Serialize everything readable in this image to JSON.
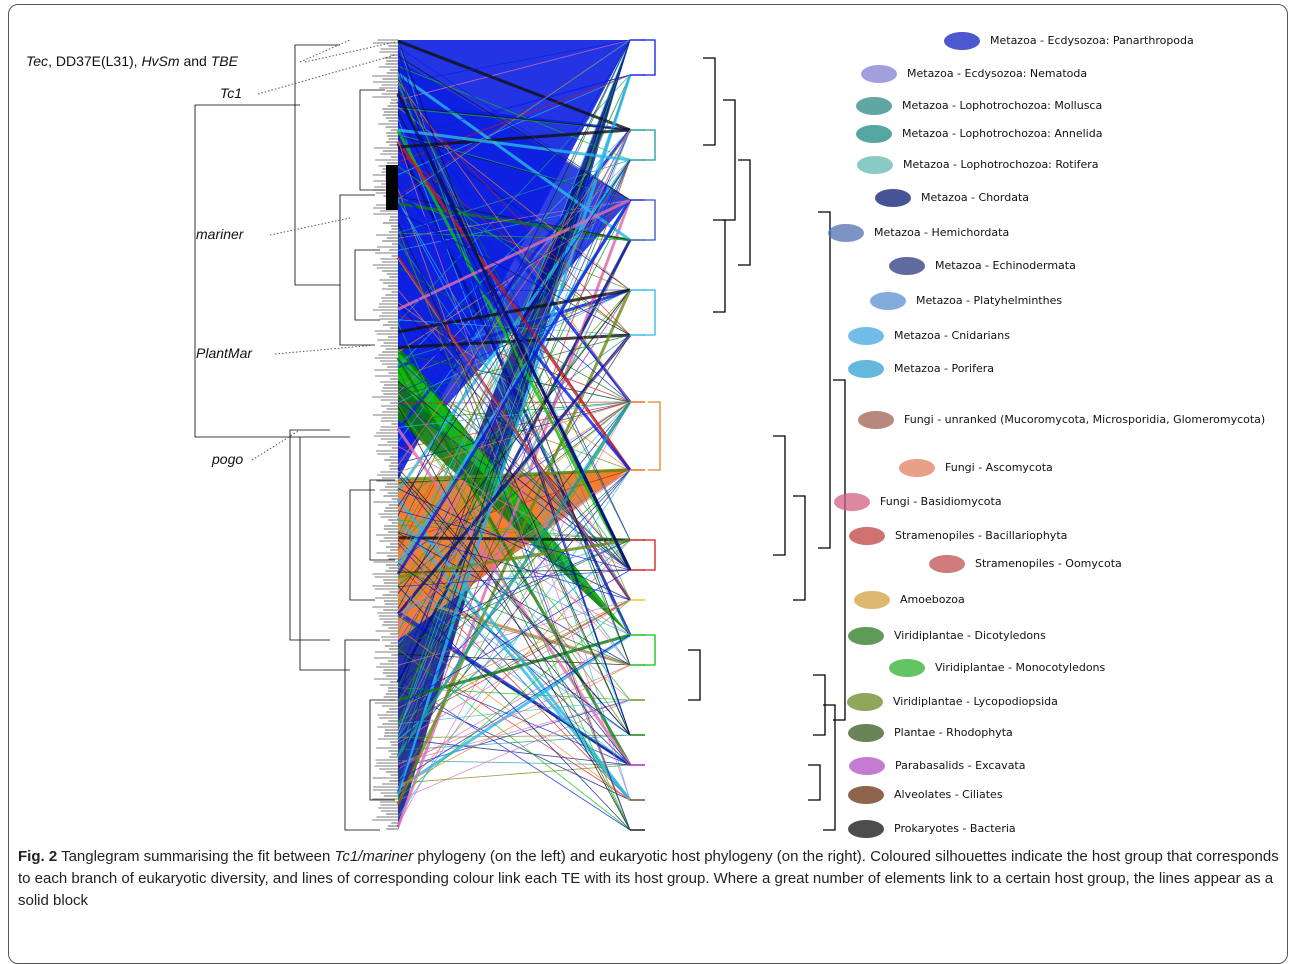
{
  "figure": {
    "te_labels": [
      {
        "parts": [
          "Tec",
          ", DD37E(L31), ",
          "HvSm",
          " and ",
          "TBE"
        ]
      },
      {
        "parts": [
          "Tc1"
        ]
      },
      {
        "parts": [
          "mariner"
        ]
      },
      {
        "parts": [
          "PlantMar"
        ]
      },
      {
        "parts": [
          "pogo"
        ]
      }
    ],
    "host_labels": [
      "Metazoa - Ecdysozoa: Panarthropoda",
      "Metazoa - Ecdysozoa: Nematoda",
      "Metazoa - Lophotrochozoa: Mollusca",
      "Metazoa - Lophotrochozoa: Annelida",
      "Metazoa - Lophotrochozoa: Rotifera",
      "Metazoa - Chordata",
      "Metazoa - Hemichordata",
      "Metazoa - Echinodermata",
      "Metazoa - Platyhelminthes",
      "Metazoa - Cnidarians",
      "Metazoa - Porifera",
      "Fungi - unranked (Mucoromycota, Microsporidia, Glomeromycota)",
      "Fungi - Ascomycota",
      "Fungi - Basidiomycota",
      "Stramenopiles - Bacillariophyta",
      "Stramenopiles - Oomycota",
      "Amoebozoa",
      "Viridiplantae - Dicotyledons",
      "Viridiplantae - Monocotyledons",
      "Viridiplantae - Lycopodiopsida",
      "Plantae - Rhodophyta",
      "Parabasalids - Excavata",
      "Alveolates - Ciliates",
      "Prokaryotes - Bacteria"
    ],
    "caption": {
      "label": "Fig. 2",
      "parts": [
        " Tanglegram summarising the fit between ",
        "Tc1/mariner",
        " phylogeny (on the left) and eukaryotic host phylogeny (on the right). Coloured silhouettes indicate the host group that corresponds to each branch of eukaryotic diversity, and lines of corresponding colour link each TE with its host group. Where a great number of elements link to a certain host group, the lines appear as a solid block"
      ]
    }
  }
}
